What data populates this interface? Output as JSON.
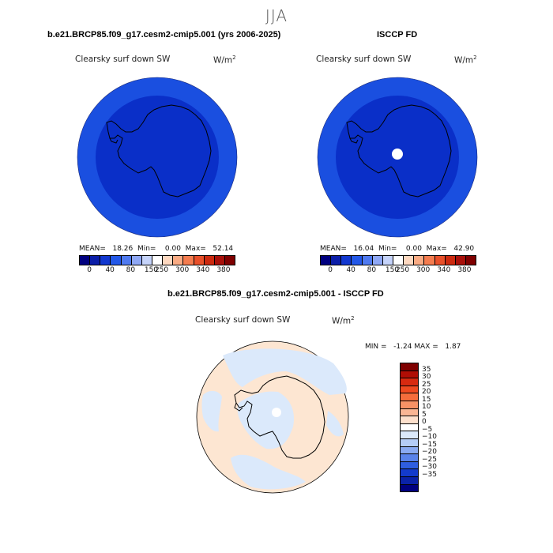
{
  "figure": {
    "season": "JJA"
  },
  "panel_left": {
    "title": "b.e21.BRCP85.f09_g17.cesm2-cmip5.001 (yrs 2006-2025)",
    "variable": "Clearsky surf down SW",
    "units_base": "W/m",
    "units_exp": "2",
    "stats": "MEAN=   18.26  Min=    0.00  Max=   52.14",
    "colors": {
      "outer_ring": "#1a4fe0",
      "inner_disk": "#0a2fc8"
    }
  },
  "panel_right": {
    "title": "ISCCP FD",
    "variable": "Clearsky surf down SW",
    "units_base": "W/m",
    "units_exp": "2",
    "stats": "MEAN=   16.04  Min=    0.00  Max=   42.90",
    "colors": {
      "outer_ring": "#1a4fe0",
      "inner_disk": "#0a2fc8",
      "pole_hole": "#ffffff"
    }
  },
  "colorbar_top": {
    "ticks": [
      "0",
      "40",
      "80",
      "150",
      "250",
      "300",
      "340",
      "380"
    ],
    "colors": [
      "#00007f",
      "#0b1ea8",
      "#1238d0",
      "#2358e8",
      "#4f7af0",
      "#8fa8f5",
      "#c5d3fa",
      "#ffffff",
      "#fdd8c0",
      "#f9ab84",
      "#f47c4f",
      "#e8502a",
      "#cc2a10",
      "#a8100a",
      "#7f0000"
    ]
  },
  "panel_diff": {
    "title": "b.e21.BRCP85.f09_g17.cesm2-cmip5.001 - ISCCP FD",
    "variable": "Clearsky surf down SW",
    "units_base": "W/m",
    "units_exp": "2",
    "stats": "MIN =   -1.24 MAX =   1.87",
    "colors": {
      "positive_fill": "#fde6d2",
      "negative_fill": "#dbe9fb"
    }
  },
  "colorbar_diff": {
    "labels": [
      "35",
      "30",
      "25",
      "20",
      "15",
      "10",
      "5",
      "0",
      "-5",
      "-10",
      "-15",
      "-20",
      "-25",
      "-30",
      "-35"
    ],
    "colors": [
      "#7f0000",
      "#b00e05",
      "#d82a10",
      "#ef4a20",
      "#f56d3c",
      "#f89266",
      "#fab694",
      "#fde0cc",
      "#ffffff",
      "#dbe9fb",
      "#b5cdf7",
      "#8aaaf2",
      "#5a83ea",
      "#2f5ee0",
      "#133bcc",
      "#0a22a8",
      "#00007f"
    ]
  }
}
